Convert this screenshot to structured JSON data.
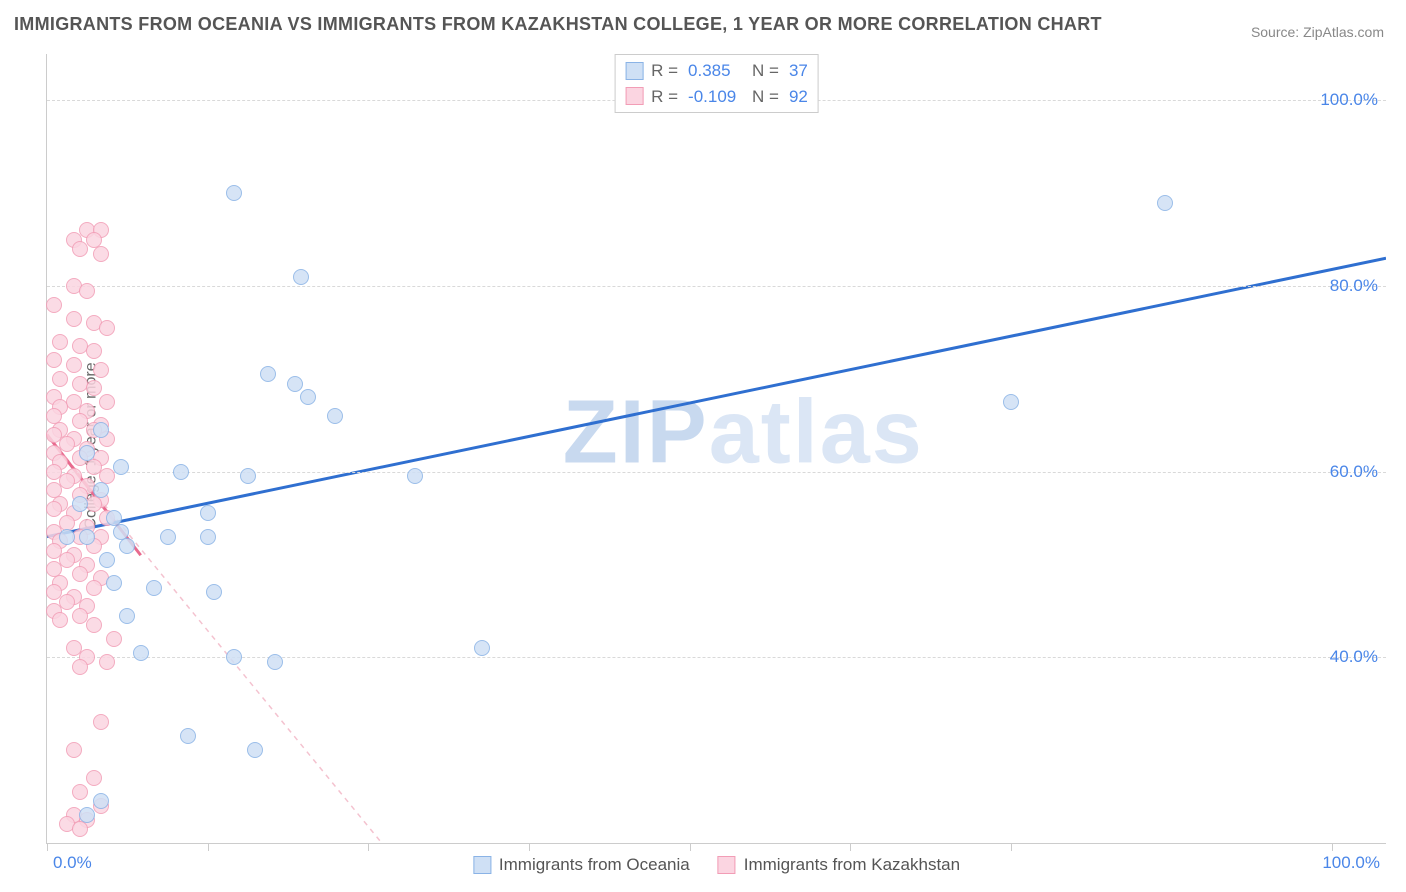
{
  "title": "IMMIGRANTS FROM OCEANIA VS IMMIGRANTS FROM KAZAKHSTAN COLLEGE, 1 YEAR OR MORE CORRELATION CHART",
  "source": "Source: ZipAtlas.com",
  "watermark": {
    "zip": "ZIP",
    "atlas": "atlas"
  },
  "chart": {
    "type": "scatter",
    "ylabel": "College, 1 year or more",
    "xlim": [
      0,
      100
    ],
    "ylim": [
      20,
      105
    ],
    "xtick_label_left": "0.0%",
    "xtick_label_right": "100.0%",
    "xtick_positions": [
      0,
      12,
      24,
      36,
      48,
      60,
      72,
      96
    ],
    "yticks": [
      {
        "v": 40,
        "label": "40.0%"
      },
      {
        "v": 60,
        "label": "60.0%"
      },
      {
        "v": 80,
        "label": "80.0%"
      },
      {
        "v": 100,
        "label": "100.0%"
      }
    ],
    "background_color": "#ffffff",
    "grid_color": "#d9d9d9",
    "axis_color": "#cccccc",
    "tick_label_color": "#4a86e8",
    "series": [
      {
        "name": "Immigrants from Oceania",
        "legend_label": "Immigrants from Oceania",
        "fill": "#cfe0f5",
        "stroke": "#8ab3e6",
        "marker_size": 16,
        "R_label": "R =",
        "R": "0.385",
        "N_label": "N =",
        "N": "37",
        "trend": {
          "x1": 0,
          "y1": 53,
          "x2": 100,
          "y2": 83,
          "color": "#2f6fd0",
          "width": 3,
          "dash": "none"
        },
        "points": [
          [
            14.0,
            90.0
          ],
          [
            83.5,
            89.0
          ],
          [
            19.0,
            81.0
          ],
          [
            16.5,
            70.5
          ],
          [
            18.5,
            69.5
          ],
          [
            19.5,
            68.0
          ],
          [
            72.0,
            67.5
          ],
          [
            21.5,
            66.0
          ],
          [
            4.0,
            64.5
          ],
          [
            3.0,
            62.0
          ],
          [
            10.0,
            60.0
          ],
          [
            15.0,
            59.5
          ],
          [
            27.5,
            59.5
          ],
          [
            4.0,
            58.0
          ],
          [
            12.0,
            55.5
          ],
          [
            5.0,
            55.0
          ],
          [
            1.5,
            53.0
          ],
          [
            3.0,
            53.0
          ],
          [
            5.5,
            53.5
          ],
          [
            9.0,
            53.0
          ],
          [
            12.0,
            53.0
          ],
          [
            4.5,
            50.5
          ],
          [
            5.0,
            48.0
          ],
          [
            8.0,
            47.5
          ],
          [
            12.5,
            47.0
          ],
          [
            6.0,
            44.5
          ],
          [
            32.5,
            41.0
          ],
          [
            7.0,
            40.5
          ],
          [
            14.0,
            40.0
          ],
          [
            17.0,
            39.5
          ],
          [
            10.5,
            31.5
          ],
          [
            15.5,
            30.0
          ],
          [
            4.0,
            24.5
          ],
          [
            3.0,
            23.0
          ],
          [
            5.5,
            60.5
          ],
          [
            2.5,
            56.5
          ],
          [
            6.0,
            52.0
          ]
        ]
      },
      {
        "name": "Immigrants from Kazakhstan",
        "legend_label": "Immigrants from Kazakhstan",
        "fill": "#fbd5e1",
        "stroke": "#f29db6",
        "marker_size": 16,
        "R_label": "R =",
        "R": "-0.109",
        "N_label": "N =",
        "N": "92",
        "trend": {
          "x1": 0,
          "y1": 64,
          "x2": 25,
          "y2": 20,
          "color": "#f4c2cf",
          "width": 1.5,
          "dash": "5,5"
        },
        "trend_solid": {
          "x1": 0,
          "y1": 64,
          "x2": 7,
          "y2": 51,
          "color": "#e86a8e",
          "width": 3
        },
        "points": [
          [
            3.0,
            86.0
          ],
          [
            4.0,
            86.0
          ],
          [
            2.0,
            85.0
          ],
          [
            3.5,
            85.0
          ],
          [
            2.5,
            84.0
          ],
          [
            4.0,
            83.5
          ],
          [
            2.0,
            80.0
          ],
          [
            3.0,
            79.5
          ],
          [
            0.5,
            78.0
          ],
          [
            2.0,
            76.5
          ],
          [
            3.5,
            76.0
          ],
          [
            4.5,
            75.5
          ],
          [
            1.0,
            74.0
          ],
          [
            2.5,
            73.5
          ],
          [
            3.5,
            73.0
          ],
          [
            0.5,
            72.0
          ],
          [
            2.0,
            71.5
          ],
          [
            4.0,
            71.0
          ],
          [
            1.0,
            70.0
          ],
          [
            2.5,
            69.5
          ],
          [
            3.5,
            69.0
          ],
          [
            0.5,
            68.0
          ],
          [
            2.0,
            67.5
          ],
          [
            4.5,
            67.5
          ],
          [
            1.0,
            67.0
          ],
          [
            3.0,
            66.5
          ],
          [
            0.5,
            66.0
          ],
          [
            2.5,
            65.5
          ],
          [
            4.0,
            65.0
          ],
          [
            1.0,
            64.5
          ],
          [
            3.5,
            64.5
          ],
          [
            0.5,
            64.0
          ],
          [
            2.0,
            63.5
          ],
          [
            4.5,
            63.5
          ],
          [
            1.5,
            63.0
          ],
          [
            3.0,
            62.5
          ],
          [
            0.5,
            62.0
          ],
          [
            2.5,
            61.5
          ],
          [
            4.0,
            61.5
          ],
          [
            1.0,
            61.0
          ],
          [
            3.5,
            60.5
          ],
          [
            0.5,
            60.0
          ],
          [
            2.0,
            59.5
          ],
          [
            4.5,
            59.5
          ],
          [
            1.5,
            59.0
          ],
          [
            3.0,
            58.5
          ],
          [
            0.5,
            58.0
          ],
          [
            2.5,
            57.5
          ],
          [
            4.0,
            57.0
          ],
          [
            1.0,
            56.5
          ],
          [
            3.5,
            56.5
          ],
          [
            0.5,
            56.0
          ],
          [
            2.0,
            55.5
          ],
          [
            4.5,
            55.0
          ],
          [
            1.5,
            54.5
          ],
          [
            3.0,
            54.0
          ],
          [
            0.5,
            53.5
          ],
          [
            2.5,
            53.0
          ],
          [
            4.0,
            53.0
          ],
          [
            1.0,
            52.5
          ],
          [
            3.5,
            52.0
          ],
          [
            0.5,
            51.5
          ],
          [
            2.0,
            51.0
          ],
          [
            1.5,
            50.5
          ],
          [
            3.0,
            50.0
          ],
          [
            0.5,
            49.5
          ],
          [
            2.5,
            49.0
          ],
          [
            4.0,
            48.5
          ],
          [
            1.0,
            48.0
          ],
          [
            3.5,
            47.5
          ],
          [
            0.5,
            47.0
          ],
          [
            2.0,
            46.5
          ],
          [
            1.5,
            46.0
          ],
          [
            3.0,
            45.5
          ],
          [
            0.5,
            45.0
          ],
          [
            2.5,
            44.5
          ],
          [
            1.0,
            44.0
          ],
          [
            3.5,
            43.5
          ],
          [
            5.0,
            42.0
          ],
          [
            2.0,
            41.0
          ],
          [
            3.0,
            40.0
          ],
          [
            4.5,
            39.5
          ],
          [
            2.5,
            39.0
          ],
          [
            4.0,
            33.0
          ],
          [
            2.0,
            30.0
          ],
          [
            3.5,
            27.0
          ],
          [
            2.5,
            25.5
          ],
          [
            4.0,
            24.0
          ],
          [
            2.0,
            23.0
          ],
          [
            3.0,
            22.5
          ],
          [
            1.5,
            22.0
          ],
          [
            2.5,
            21.5
          ]
        ]
      }
    ]
  }
}
